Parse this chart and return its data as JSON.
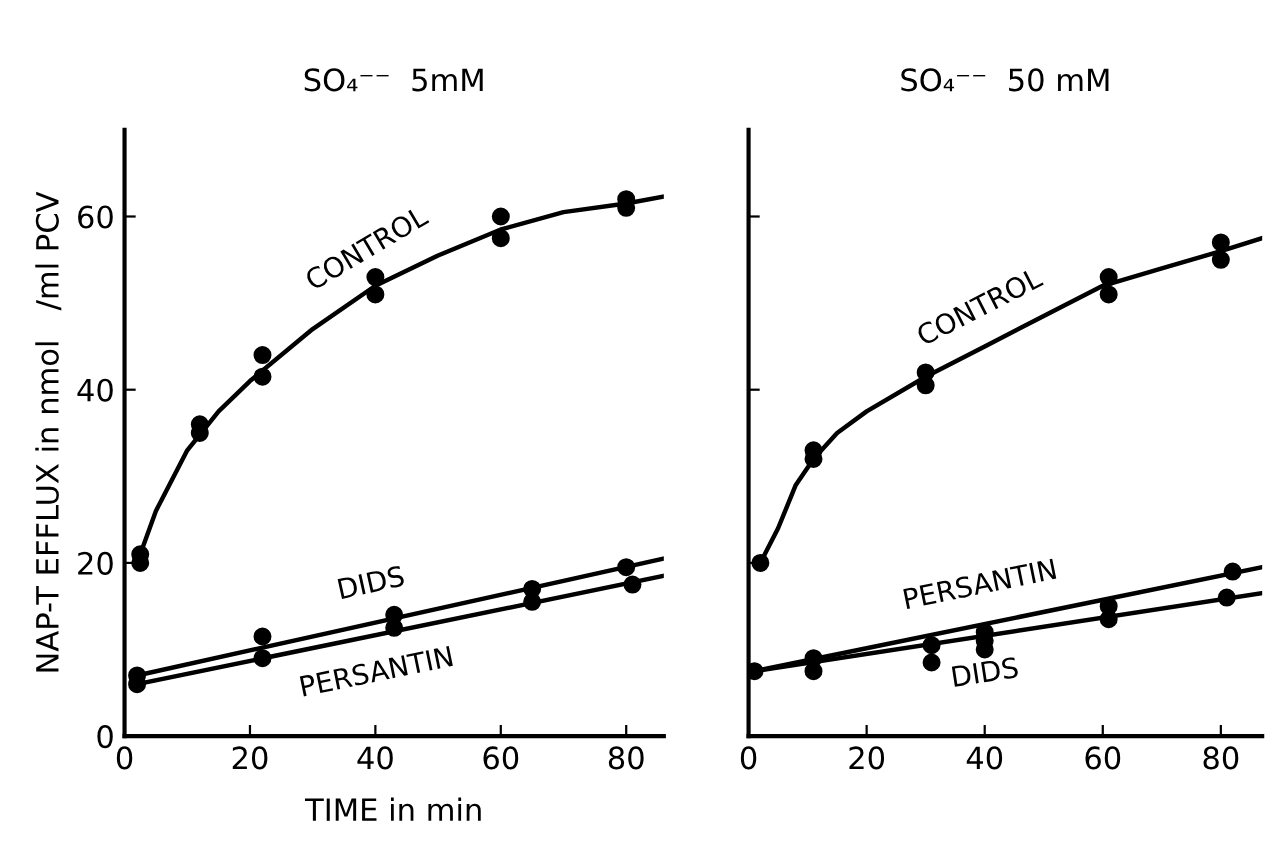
{
  "chart_data": [
    {
      "type": "line",
      "title": "SO₄⁻⁻  5mM",
      "xlabel": "TIME in min",
      "ylabel": "NAP-T EFFLUX in nmol   /ml PCV",
      "xlim": [
        0,
        86
      ],
      "ylim": [
        0,
        70
      ],
      "xticks": [
        0,
        20,
        40,
        60,
        80
      ],
      "yticks": [
        0,
        20,
        40,
        60
      ],
      "grid": false,
      "legend": false,
      "series": [
        {
          "type": "scatter",
          "color": "#000000",
          "marker": "circle",
          "x": [
            2.5,
            2.5,
            12,
            12,
            22,
            22,
            40,
            40,
            60,
            60,
            80,
            80
          ],
          "values": [
            21,
            20,
            36,
            35,
            44,
            41.5,
            53,
            51,
            60,
            57.5,
            62,
            61
          ]
        },
        {
          "type": "scatter",
          "color": "#000000",
          "marker": "circle",
          "x": [
            2,
            22,
            43,
            65,
            80
          ],
          "values": [
            7,
            11.5,
            14,
            17,
            19.5
          ]
        },
        {
          "type": "scatter",
          "color": "#000000",
          "marker": "circle",
          "x": [
            2,
            22,
            43,
            65,
            81
          ],
          "values": [
            6,
            9,
            12.5,
            15.5,
            17.5
          ]
        },
        {
          "name": "CONTROL",
          "color": "#000000",
          "line_style": "solid",
          "x": [
            2,
            5,
            10,
            15,
            20,
            30,
            40,
            50,
            60,
            70,
            80,
            86
          ],
          "values": [
            20,
            26,
            33,
            37.5,
            41,
            47,
            52,
            55.5,
            58.5,
            60.5,
            61.5,
            62.3
          ]
        },
        {
          "name": "DIDS",
          "color": "#000000",
          "line_style": "solid",
          "x": [
            2,
            86
          ],
          "values": [
            7,
            20.5
          ]
        },
        {
          "name": "PERSANTIN",
          "color": "#000000",
          "line_style": "solid",
          "x": [
            2,
            86
          ],
          "values": [
            6,
            18.5
          ]
        }
      ]
    },
    {
      "type": "line",
      "title": "SO₄⁻⁻  50 mM",
      "xlim": [
        0,
        87
      ],
      "ylim": [
        0,
        70
      ],
      "xticks": [
        0,
        20,
        40,
        60,
        80
      ],
      "yticks": [
        {
          "value": 0,
          "label": null
        },
        {
          "value": 20,
          "label": null
        },
        {
          "value": 40,
          "label": null
        },
        {
          "value": 60,
          "label": null
        }
      ],
      "tick_labels": "x",
      "grid": false,
      "legend": false,
      "series": [
        {
          "type": "scatter",
          "color": "#000000",
          "marker": "circle",
          "x": [
            2,
            11,
            11,
            30,
            30,
            61,
            61,
            80,
            80
          ],
          "values": [
            20,
            33,
            32,
            42,
            40.5,
            53,
            51,
            57,
            55
          ]
        },
        {
          "type": "scatter",
          "color": "#000000",
          "marker": "circle",
          "x": [
            1,
            11,
            40,
            61,
            82
          ],
          "values": [
            7.5,
            9,
            12,
            15,
            19
          ]
        },
        {
          "type": "scatter",
          "color": "#000000",
          "marker": "circle",
          "x": [
            11,
            31,
            31,
            40,
            40,
            61,
            81
          ],
          "values": [
            7.5,
            10.5,
            8.5,
            11,
            10,
            13.5,
            16
          ]
        },
        {
          "name": "CONTROL",
          "color": "#000000",
          "line_style": "solid",
          "x": [
            2,
            5,
            8,
            11,
            15,
            20,
            30,
            40,
            50,
            60,
            70,
            80,
            87
          ],
          "values": [
            20,
            24,
            29,
            32,
            35,
            37.5,
            41.5,
            45,
            48.5,
            52,
            54,
            56,
            57.5
          ]
        },
        {
          "name": "PERSANTIN",
          "color": "#000000",
          "line_style": "solid",
          "x": [
            1,
            87
          ],
          "values": [
            7.5,
            19.5
          ]
        },
        {
          "name": "DIDS",
          "color": "#000000",
          "line_style": "solid",
          "x": [
            1,
            87
          ],
          "values": [
            7.5,
            16.5
          ]
        }
      ]
    }
  ]
}
